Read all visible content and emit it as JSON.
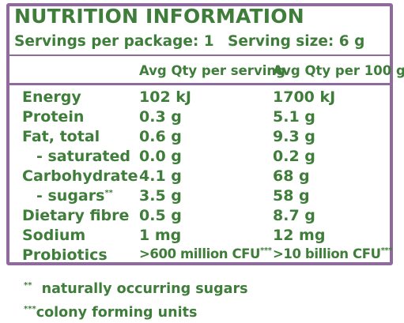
{
  "title": "NUTRITION INFORMATION",
  "servings_per_package": "Servings per package: 1",
  "serving_size": "Serving size: 6 g",
  "columns": {
    "per_serving": "Avg Qty per serving",
    "per_100g": "Avg Qty per 100 g"
  },
  "rows": [
    {
      "name": "Energy",
      "per_serving": "102 kJ",
      "per_100g": "1700 kJ"
    },
    {
      "name": "Protein",
      "per_serving": "0.3 g",
      "per_100g": "5.1 g"
    },
    {
      "name": "Fat, total",
      "per_serving": "0.6 g",
      "per_100g": "9.3 g"
    },
    {
      "name": "- saturated",
      "per_serving": "0.0 g",
      "per_100g": "0.2 g"
    },
    {
      "name": "Carbohydrate",
      "per_serving": "4.1 g",
      "per_100g": "68 g"
    },
    {
      "name": "- sugars",
      "name_mark": "**",
      "per_serving": "3.5 g",
      "per_100g": "58 g"
    },
    {
      "name": "Dietary fibre",
      "per_serving": "0.5 g",
      "per_100g": "8.7 g"
    },
    {
      "name": "Sodium",
      "per_serving": "1 mg",
      "per_100g": "12 mg"
    },
    {
      "name": "Probiotics",
      "per_serving": ">600 million CFU",
      "per_serving_mark": "***",
      "per_100g": ">10 billion CFU",
      "per_100g_mark": "***"
    }
  ],
  "footnotes": [
    {
      "mark": "**",
      "text": "naturally occurring sugars"
    },
    {
      "mark": "***",
      "text": "colony forming units"
    }
  ],
  "colors": {
    "text": "#3f7d3a",
    "border": "#8f6a9c"
  }
}
